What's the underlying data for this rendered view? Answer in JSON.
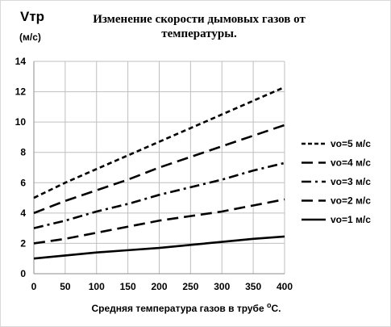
{
  "chart_data": {
    "type": "line",
    "title": "Изменение  скорости дымовых  газов от температуры.",
    "ylabel": "Vтр",
    "ylabel_unit": "(м/с)",
    "xlabel": "Средняя температура газов в трубе °С.",
    "xlabel_text": "Средняя температура газов в трубе ",
    "xlabel_sup": "o",
    "xlabel_tail": "С.",
    "x": [
      0,
      50,
      100,
      150,
      200,
      250,
      300,
      350,
      400
    ],
    "xlim": [
      0,
      400
    ],
    "ylim": [
      0,
      14
    ],
    "yticks": [
      0,
      2,
      4,
      6,
      8,
      10,
      12,
      14
    ],
    "grid": "vertical and horizontal",
    "legend_position": "right",
    "series": [
      {
        "name": "vo=5 м/с",
        "dash": "short-dash",
        "values": [
          5.0,
          6.0,
          6.9,
          7.8,
          8.7,
          9.6,
          10.5,
          11.4,
          12.3
        ]
      },
      {
        "name": "vo=4 м/с",
        "dash": "long-dash",
        "values": [
          4.0,
          4.8,
          5.5,
          6.2,
          7.0,
          7.7,
          8.4,
          9.1,
          9.8
        ]
      },
      {
        "name": "vo=3 м/с",
        "dash": "dash-dot",
        "values": [
          3.0,
          3.5,
          4.1,
          4.6,
          5.2,
          5.7,
          6.2,
          6.8,
          7.3
        ]
      },
      {
        "name": "vo=2 м/с",
        "dash": "long-dash",
        "values": [
          2.0,
          2.3,
          2.7,
          3.1,
          3.5,
          3.8,
          4.1,
          4.5,
          4.9
        ]
      },
      {
        "name": "vo=1 м/с",
        "dash": "solid",
        "values": [
          1.0,
          1.2,
          1.4,
          1.55,
          1.7,
          1.9,
          2.1,
          2.3,
          2.45
        ]
      }
    ],
    "colors": {
      "line": "#000000",
      "grid": "#bfbfbf",
      "axis": "#8c8c8c"
    }
  }
}
